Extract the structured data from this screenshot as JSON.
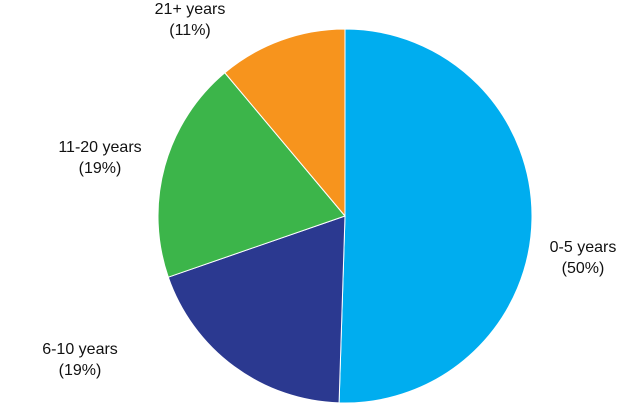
{
  "chart_data": {
    "type": "pie",
    "categories": [
      "0-5 years",
      "6-10 years",
      "11-20 years",
      "21+ years"
    ],
    "values": [
      50,
      19,
      19,
      11
    ],
    "value_labels": [
      "(50%)",
      "(19%)",
      "(19%)",
      "(11%)"
    ],
    "colors": [
      "#00adef",
      "#2b3990",
      "#3cb54a",
      "#f7941d"
    ]
  }
}
